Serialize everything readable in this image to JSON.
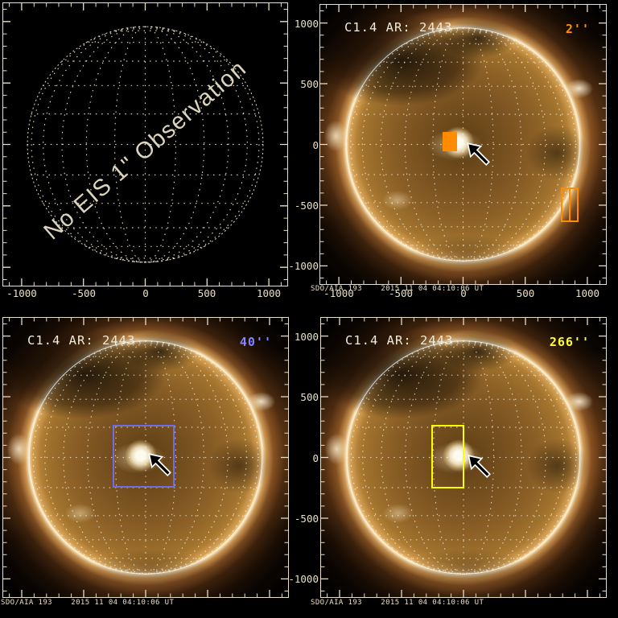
{
  "colors": {
    "frame": "#e9dfc6",
    "grid_dots": "#f1e8d0",
    "title_text": "#f2ecdc",
    "caption_text": "#e9dfc6",
    "tick_text": "#e9dfc6",
    "fov_2": "#ff9000",
    "fov_40": "#8585ff",
    "fov_266": "#ffff2e",
    "target_fill": "#ff8c00",
    "slit_stroke": "#ff8c00",
    "box_blue": "#6d6de8",
    "box_yellow": "#ffff00",
    "arrow_fill": "#000000",
    "arrow_outline": "#ffffff"
  },
  "no_obs": {
    "message": "No EIS 1\" Observation",
    "xticks": [
      "-1000",
      "-500",
      "0",
      "500",
      "1000"
    ]
  },
  "panel_tr": {
    "title": "C1.4 AR: 2443",
    "fov": "2''",
    "caption": "SDO/AIA 193    2015 11 04 04:10:06 UT",
    "xticks": [
      "-1000",
      "-500",
      "0",
      "500",
      "1000"
    ],
    "yticks": [
      "1000",
      "500",
      "0",
      "-500",
      "-1000"
    ]
  },
  "panel_bl": {
    "title": "C1.4 AR: 2443",
    "fov": "40''",
    "caption": "SDO/AIA 193    2015 11 04 04:10:06 UT"
  },
  "panel_br": {
    "title": "C1.4 AR: 2443",
    "fov": "266''",
    "caption": "SDO/AIA 193    2015 11 04 04:10:06 UT",
    "yticks": [
      "1000",
      "500",
      "0",
      "-500",
      "-1000"
    ]
  }
}
